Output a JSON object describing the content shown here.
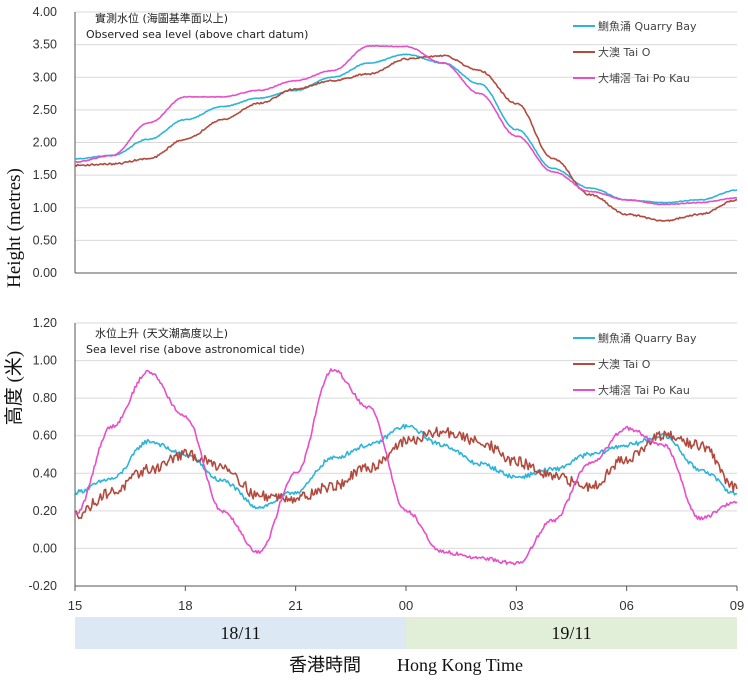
{
  "chart_data": [
    {
      "type": "line",
      "title": "實測水位 (海圖基準面以上)",
      "subtitle": "Observed sea level (above chart datum)",
      "ylabel": "Height (metres)",
      "ylim": [
        0,
        4
      ],
      "yticks": [
        "0.00",
        "0.50",
        "1.00",
        "1.50",
        "2.00",
        "2.50",
        "3.00",
        "3.50",
        "4.00"
      ],
      "x_unit": "hours from 15:00 18/11 (Hong Kong Time)",
      "x": [
        0,
        1,
        2,
        3,
        4,
        5,
        6,
        7,
        8,
        9,
        10,
        11,
        12,
        13,
        14,
        15,
        16,
        17,
        18
      ],
      "legend_position": "top-right",
      "series": [
        {
          "name": "鰂魚涌 Quarry Bay",
          "color": "#2cb5d9",
          "noise": 0.006,
          "values": [
            1.75,
            1.8,
            2.05,
            2.35,
            2.55,
            2.68,
            2.8,
            3.0,
            3.22,
            3.35,
            3.22,
            2.9,
            2.2,
            1.6,
            1.3,
            1.12,
            1.08,
            1.12,
            1.27
          ]
        },
        {
          "name": "大澳 Tai O",
          "color": "#b24a3e",
          "noise": 0.012,
          "values": [
            1.65,
            1.67,
            1.75,
            2.05,
            2.35,
            2.6,
            2.82,
            2.95,
            3.05,
            3.28,
            3.33,
            3.1,
            2.6,
            1.75,
            1.2,
            0.9,
            0.8,
            0.9,
            1.12
          ]
        },
        {
          "name": "大埔滘 Tai Po Kau",
          "color": "#e64fc8",
          "noise": 0.006,
          "values": [
            1.7,
            1.8,
            2.3,
            2.7,
            2.7,
            2.8,
            2.95,
            3.1,
            3.48,
            3.47,
            3.22,
            2.75,
            2.1,
            1.55,
            1.25,
            1.12,
            1.05,
            1.08,
            1.15
          ]
        }
      ]
    },
    {
      "type": "line",
      "title": "水位上升 (天文潮高度以上)",
      "subtitle": "Sea level rise (above astronomical tide)",
      "ylabel": "高度 (米)",
      "ylim": [
        -0.2,
        1.2
      ],
      "yticks": [
        "-0.20",
        "0.00",
        "0.20",
        "0.40",
        "0.60",
        "0.80",
        "1.00",
        "1.20"
      ],
      "x_unit": "hours from 15:00 18/11 (Hong Kong Time)",
      "x": [
        0,
        1,
        2,
        3,
        4,
        5,
        6,
        7,
        8,
        9,
        10,
        11,
        12,
        13,
        14,
        15,
        16,
        17,
        18
      ],
      "legend_position": "top-right",
      "series": [
        {
          "name": "鰂魚涌 Quarry Bay",
          "color": "#2cb5d9",
          "noise": 0.012,
          "values": [
            0.3,
            0.37,
            0.57,
            0.5,
            0.36,
            0.22,
            0.3,
            0.48,
            0.55,
            0.65,
            0.55,
            0.45,
            0.38,
            0.42,
            0.5,
            0.55,
            0.6,
            0.42,
            0.29
          ]
        },
        {
          "name": "大澳 Tai O",
          "color": "#b24a3e",
          "noise": 0.028,
          "values": [
            0.18,
            0.3,
            0.42,
            0.5,
            0.44,
            0.28,
            0.27,
            0.33,
            0.43,
            0.57,
            0.62,
            0.57,
            0.46,
            0.38,
            0.33,
            0.48,
            0.6,
            0.55,
            0.32
          ]
        },
        {
          "name": "大埔滘 Tai Po Kau",
          "color": "#e64fc8",
          "noise": 0.01,
          "values": [
            0.18,
            0.65,
            0.94,
            0.7,
            0.2,
            -0.02,
            0.4,
            0.95,
            0.75,
            0.2,
            -0.02,
            -0.05,
            -0.08,
            0.15,
            0.45,
            0.64,
            0.55,
            0.16,
            0.25
          ]
        }
      ]
    }
  ],
  "x_axis": {
    "tick_labels": [
      "15",
      "18",
      "21",
      "00",
      "03",
      "06",
      "09"
    ],
    "tick_hours": [
      0,
      3,
      6,
      9,
      12,
      15,
      18
    ]
  },
  "date_bands": [
    {
      "label": "18/11",
      "from_hour": 0,
      "to_hour": 9,
      "color": "#dce9f5"
    },
    {
      "label": "19/11",
      "from_hour": 9,
      "to_hour": 18,
      "color": "#e2efd8"
    }
  ],
  "footer": {
    "label": "香港時間　　Hong Kong Time"
  }
}
